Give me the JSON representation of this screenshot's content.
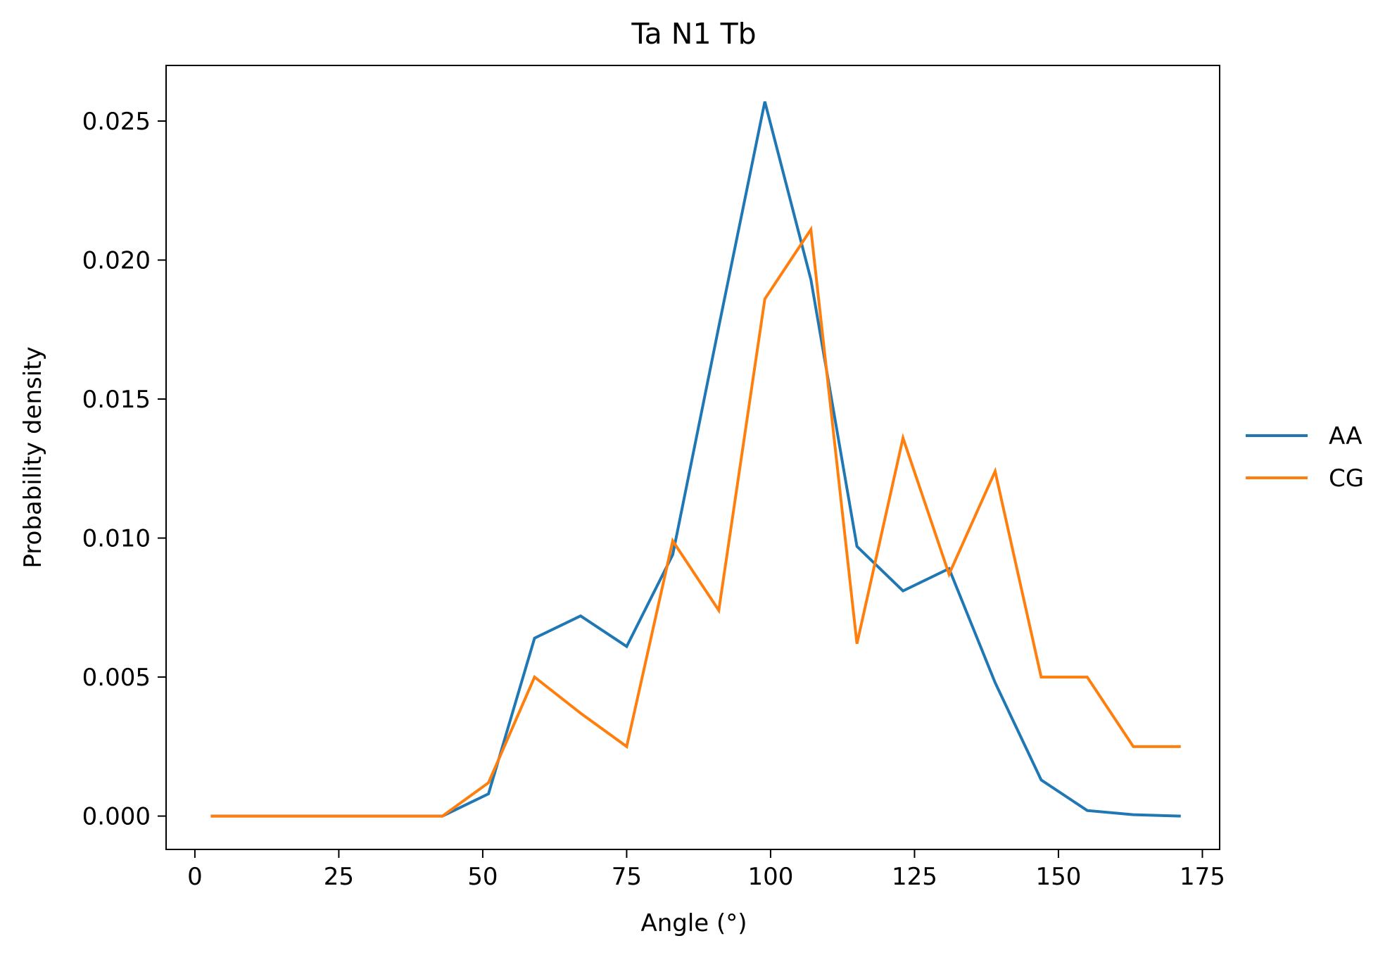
{
  "chart_data": {
    "type": "line",
    "title": "Ta N1 Tb",
    "xlabel": "Angle (°)",
    "ylabel": "Probability density",
    "xlim": [
      -5,
      178
    ],
    "ylim": [
      -0.0012,
      0.027
    ],
    "xticks": [
      0,
      25,
      50,
      75,
      100,
      125,
      150,
      175
    ],
    "xtick_labels": [
      "0",
      "25",
      "50",
      "75",
      "100",
      "125",
      "150",
      "175"
    ],
    "yticks": [
      0.0,
      0.005,
      0.01,
      0.015,
      0.02,
      0.025
    ],
    "ytick_labels": [
      "0.000",
      "0.005",
      "0.010",
      "0.015",
      "0.020",
      "0.025"
    ],
    "grid": false,
    "legend_position": "center-right-outside",
    "x": [
      3,
      11,
      19,
      27,
      35,
      43,
      51,
      59,
      67,
      75,
      83,
      91,
      99,
      107,
      115,
      123,
      131,
      139,
      147,
      155,
      163,
      171
    ],
    "series": [
      {
        "name": "AA",
        "color": "#1f77b4",
        "values": [
          0.0,
          0.0,
          0.0,
          0.0,
          0.0,
          0.0,
          0.0008,
          0.0064,
          0.0072,
          0.0061,
          0.0094,
          0.0176,
          0.0257,
          0.0193,
          0.0097,
          0.0081,
          0.0089,
          0.0048,
          0.0013,
          0.0002,
          5e-05,
          0.0
        ]
      },
      {
        "name": "CG",
        "color": "#ff7f0e",
        "values": [
          0.0,
          0.0,
          0.0,
          0.0,
          0.0,
          0.0,
          0.0012,
          0.005,
          0.0037,
          0.0025,
          0.0099,
          0.0074,
          0.0186,
          0.0211,
          0.0062,
          0.0136,
          0.0087,
          0.0124,
          0.005,
          0.005,
          0.0025,
          0.0025
        ]
      }
    ]
  }
}
